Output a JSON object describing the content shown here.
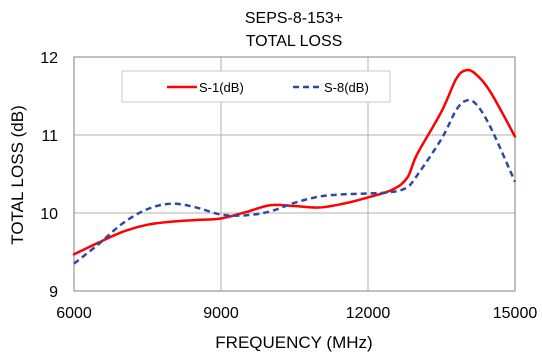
{
  "chart_data": {
    "type": "line",
    "title": "SEPS-8-153+",
    "subtitle": "TOTAL LOSS",
    "xlabel": "FREQUENCY (MHz)",
    "ylabel": "TOTAL LOSS (dB)",
    "xlim": [
      6000,
      15000
    ],
    "ylim": [
      9,
      12
    ],
    "xticks": [
      "6000",
      "9000",
      "12000",
      "15000"
    ],
    "yticks": [
      "9",
      "10",
      "11",
      "12"
    ],
    "grid": true,
    "legend_position": "top-center",
    "series": [
      {
        "name": "S-1(dB)",
        "color": "#ff0000",
        "style": "solid",
        "x": [
          6000,
          6500,
          7000,
          7500,
          8000,
          8500,
          9000,
          9500,
          10000,
          10500,
          11000,
          11500,
          12000,
          12500,
          12800,
          13000,
          13500,
          13800,
          14000,
          14200,
          14500,
          15000
        ],
        "y": [
          9.47,
          9.62,
          9.76,
          9.85,
          9.89,
          9.91,
          9.93,
          10.01,
          10.1,
          10.09,
          10.07,
          10.12,
          10.2,
          10.3,
          10.45,
          10.75,
          11.3,
          11.72,
          11.83,
          11.78,
          11.55,
          10.98
        ]
      },
      {
        "name": "S-8(dB)",
        "color": "#2e4a9e",
        "style": "dashed",
        "x": [
          6000,
          6500,
          7000,
          7500,
          8000,
          8500,
          9000,
          9500,
          10000,
          10500,
          11000,
          11500,
          12000,
          12500,
          12800,
          13000,
          13500,
          13800,
          14000,
          14200,
          14500,
          15000
        ],
        "y": [
          9.35,
          9.6,
          9.87,
          10.05,
          10.12,
          10.07,
          9.98,
          9.97,
          10.02,
          10.13,
          10.21,
          10.24,
          10.25,
          10.27,
          10.33,
          10.48,
          10.95,
          11.32,
          11.44,
          11.4,
          11.1,
          10.4
        ]
      }
    ]
  }
}
